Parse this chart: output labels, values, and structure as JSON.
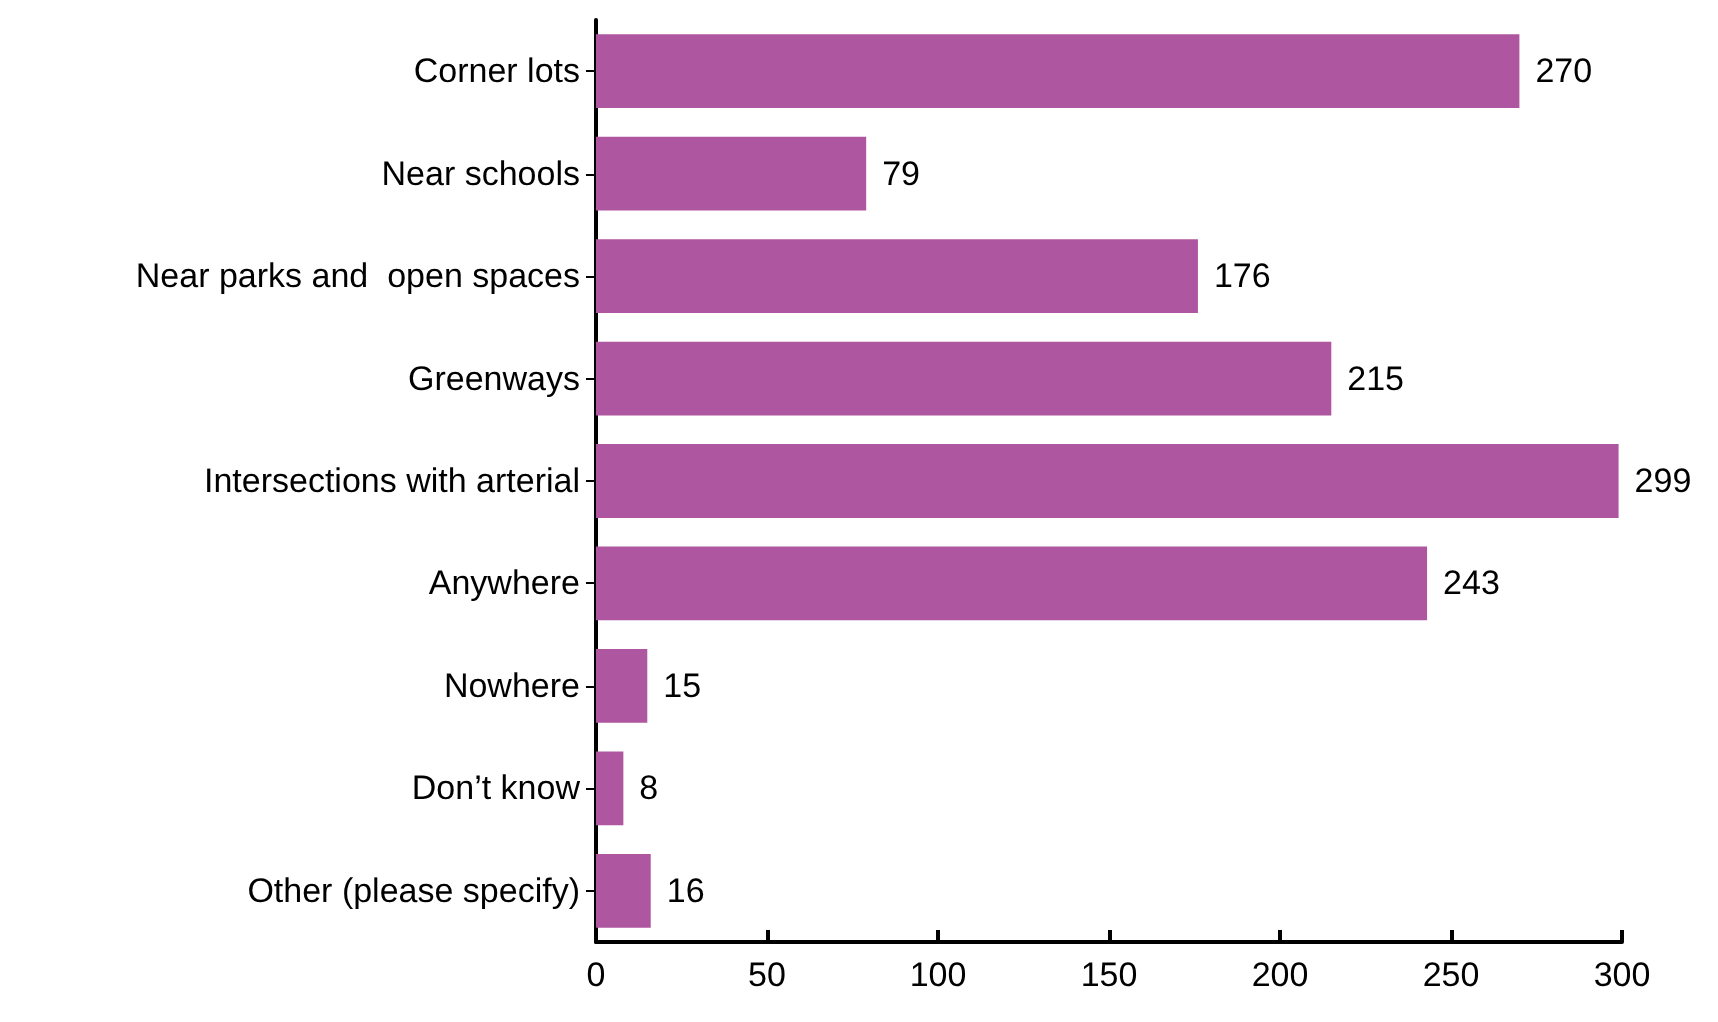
{
  "chart_data": {
    "type": "bar",
    "orientation": "horizontal",
    "categories": [
      "Corner lots",
      "Near schools",
      "Near parks and  open spaces",
      "Greenways",
      "Intersections with arterial",
      "Anywhere",
      "Nowhere",
      "Don’t know",
      "Other (please specify)"
    ],
    "values": [
      270,
      79,
      176,
      215,
      299,
      243,
      15,
      8,
      16
    ],
    "color": "#ae569f",
    "data_labels": true,
    "grid": false,
    "xlim": [
      0,
      300
    ],
    "xticks": [
      0,
      50,
      100,
      150,
      200,
      250,
      300
    ]
  }
}
